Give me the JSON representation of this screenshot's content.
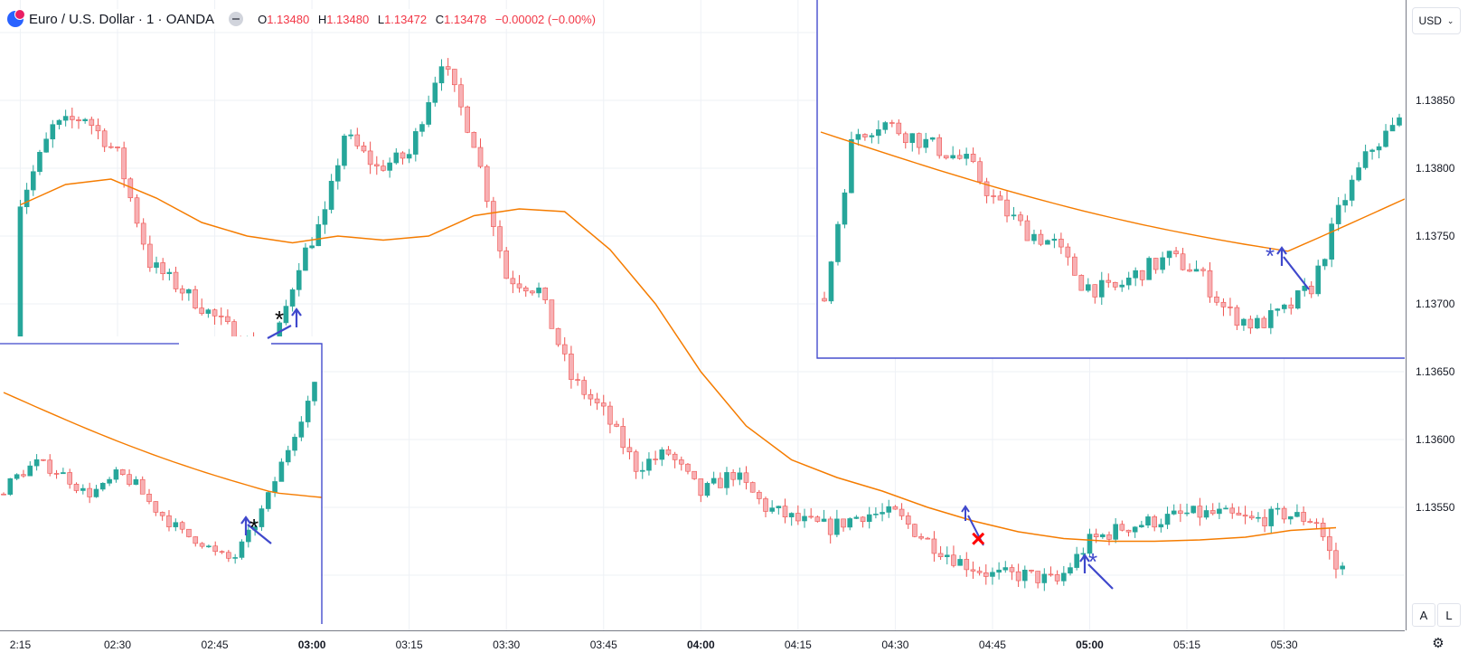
{
  "legend": {
    "title": "Euro / U.S. Dollar · 1 · OANDA",
    "o_label": "O",
    "o_value": "1.13480",
    "h_label": "H",
    "h_value": "1.13480",
    "l_label": "L",
    "l_value": "1.13472",
    "c_label": "C",
    "c_value": "1.13478",
    "change": "−0.00002 (−0.00%)"
  },
  "price_scale": {
    "currency": "USD",
    "ticks": [
      "1.13850",
      "1.13800",
      "1.13750",
      "1.13700",
      "1.13650",
      "1.13600",
      "1.13550"
    ],
    "auto_label": "A",
    "log_label": "L"
  },
  "time_scale": {
    "ticks": [
      "2:15",
      "02:30",
      "02:45",
      "03:00",
      "03:15",
      "03:30",
      "03:45",
      "04:00",
      "04:15",
      "04:30",
      "04:45",
      "05:00",
      "05:15",
      "05:30"
    ],
    "bold": [
      "03:00",
      "04:00",
      "05:00"
    ]
  },
  "colors": {
    "up": "#26a69a",
    "down": "#ef5350",
    "down_fill": "#f7b0b4",
    "ma": "#f57c00",
    "drawing": "#3f48cc",
    "cross": "#ff0000"
  },
  "chart_data": {
    "type": "candlestick",
    "timeframe": "1 minute",
    "symbol": "EUR/USD",
    "ylim": [
      1.135,
      1.13895
    ],
    "x_range": [
      "02:14",
      "05:39"
    ],
    "grid": true,
    "ohlc_close_samples": [
      {
        "t": "02:15",
        "c": 1.13775
      },
      {
        "t": "02:20",
        "c": 1.1383
      },
      {
        "t": "02:25",
        "c": 1.13838
      },
      {
        "t": "02:30",
        "c": 1.1381
      },
      {
        "t": "02:35",
        "c": 1.1373
      },
      {
        "t": "02:40",
        "c": 1.1371
      },
      {
        "t": "02:45",
        "c": 1.1369
      },
      {
        "t": "02:50",
        "c": 1.1367
      },
      {
        "t": "02:54",
        "c": 1.13665
      },
      {
        "t": "02:58",
        "c": 1.1373
      },
      {
        "t": "03:02",
        "c": 1.13765
      },
      {
        "t": "03:05",
        "c": 1.13825
      },
      {
        "t": "03:10",
        "c": 1.138
      },
      {
        "t": "03:15",
        "c": 1.1381
      },
      {
        "t": "03:20",
        "c": 1.1388
      },
      {
        "t": "03:25",
        "c": 1.1382
      },
      {
        "t": "03:30",
        "c": 1.1372
      },
      {
        "t": "03:35",
        "c": 1.1371
      },
      {
        "t": "03:40",
        "c": 1.13645
      },
      {
        "t": "03:45",
        "c": 1.1362
      },
      {
        "t": "03:50",
        "c": 1.1358
      },
      {
        "t": "03:55",
        "c": 1.1359
      },
      {
        "t": "04:00",
        "c": 1.1356
      },
      {
        "t": "04:05",
        "c": 1.13575
      },
      {
        "t": "04:10",
        "c": 1.1355
      },
      {
        "t": "04:15",
        "c": 1.1354
      },
      {
        "t": "04:20",
        "c": 1.13535
      },
      {
        "t": "04:25",
        "c": 1.13545
      },
      {
        "t": "04:30",
        "c": 1.13545
      },
      {
        "t": "04:35",
        "c": 1.13525
      },
      {
        "t": "04:40",
        "c": 1.1351
      },
      {
        "t": "04:45",
        "c": 1.135
      },
      {
        "t": "04:50",
        "c": 1.135
      },
      {
        "t": "04:55",
        "c": 1.13495
      },
      {
        "t": "05:00",
        "c": 1.13525
      },
      {
        "t": "05:05",
        "c": 1.13535
      },
      {
        "t": "05:10",
        "c": 1.1354
      },
      {
        "t": "05:15",
        "c": 1.13545
      },
      {
        "t": "05:20",
        "c": 1.13545
      },
      {
        "t": "05:25",
        "c": 1.1354
      },
      {
        "t": "05:30",
        "c": 1.13545
      },
      {
        "t": "05:35",
        "c": 1.1354
      },
      {
        "t": "05:38",
        "c": 1.13505
      }
    ],
    "moving_average": [
      {
        "t": "02:15",
        "v": 1.13773
      },
      {
        "t": "02:22",
        "v": 1.13788
      },
      {
        "t": "02:29",
        "v": 1.13792
      },
      {
        "t": "02:36",
        "v": 1.13778
      },
      {
        "t": "02:43",
        "v": 1.1376
      },
      {
        "t": "02:50",
        "v": 1.1375
      },
      {
        "t": "02:57",
        "v": 1.13745
      },
      {
        "t": "03:04",
        "v": 1.1375
      },
      {
        "t": "03:11",
        "v": 1.13747
      },
      {
        "t": "03:18",
        "v": 1.1375
      },
      {
        "t": "03:25",
        "v": 1.13765
      },
      {
        "t": "03:32",
        "v": 1.1377
      },
      {
        "t": "03:39",
        "v": 1.13768
      },
      {
        "t": "03:46",
        "v": 1.1374
      },
      {
        "t": "03:53",
        "v": 1.137
      },
      {
        "t": "04:00",
        "v": 1.1365
      },
      {
        "t": "04:07",
        "v": 1.1361
      },
      {
        "t": "04:14",
        "v": 1.13585
      },
      {
        "t": "04:21",
        "v": 1.13572
      },
      {
        "t": "04:28",
        "v": 1.13562
      },
      {
        "t": "04:35",
        "v": 1.1355
      },
      {
        "t": "04:42",
        "v": 1.1354
      },
      {
        "t": "04:49",
        "v": 1.13532
      },
      {
        "t": "04:56",
        "v": 1.13527
      },
      {
        "t": "05:03",
        "v": 1.13525
      },
      {
        "t": "05:10",
        "v": 1.13525
      },
      {
        "t": "05:17",
        "v": 1.13526
      },
      {
        "t": "05:24",
        "v": 1.13528
      },
      {
        "t": "05:31",
        "v": 1.13533
      },
      {
        "t": "05:38",
        "v": 1.13535
      }
    ],
    "annotations": [
      {
        "type": "arrow-up",
        "symbol": "*",
        "color": "black",
        "t": "02:58"
      },
      {
        "type": "arrow-up",
        "symbol": "*",
        "color": "black",
        "t": "02:55",
        "panel": "inset-left"
      },
      {
        "type": "arrow-up",
        "symbol": "×",
        "color": "red",
        "t": "04:42"
      },
      {
        "type": "arrow-up",
        "symbol": "*",
        "color": "blue",
        "t": "04:58"
      },
      {
        "type": "arrow-up",
        "symbol": "*",
        "color": "blue",
        "t": "05:25",
        "panel": "inset-right"
      }
    ]
  }
}
